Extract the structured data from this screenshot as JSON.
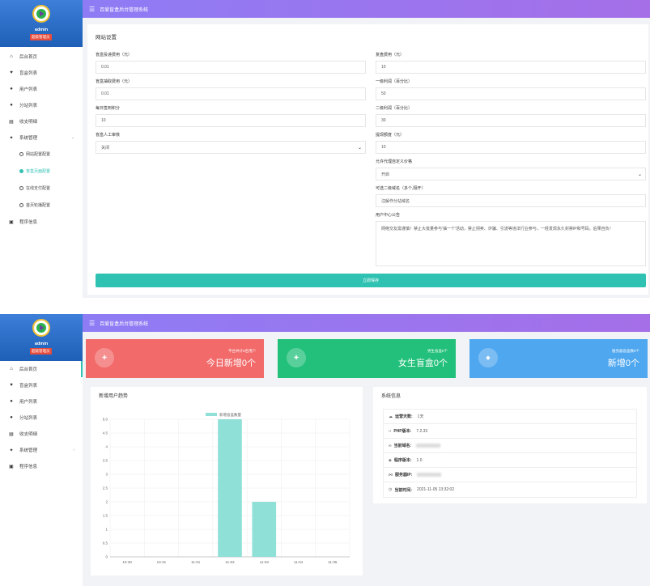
{
  "app": {
    "title": "百爱盲盒后台管理系统",
    "user": "admin",
    "role_badge": "超级管理员"
  },
  "menu": [
    {
      "label": "后台首页",
      "icon": "home-icon"
    },
    {
      "label": "盲盒列表",
      "icon": "heart-icon"
    },
    {
      "label": "用户列表",
      "icon": "user-icon"
    },
    {
      "label": "分站列表",
      "icon": "user-icon"
    },
    {
      "label": "收支明细",
      "icon": "list-icon"
    },
    {
      "label": "系统管理",
      "icon": "gear-icon"
    },
    {
      "label": "程序信息",
      "icon": "info-icon"
    }
  ],
  "submenu": [
    {
      "label": "网站配置配置"
    },
    {
      "label": "盲盒页面配置"
    },
    {
      "label": "在线支付配置"
    },
    {
      "label": "首页轮播配置"
    }
  ],
  "settings": {
    "panel_title": "网站设置",
    "fields_left": [
      {
        "label": "盲盒投递费用（元）",
        "value": "0.01"
      },
      {
        "label": "盲盒抽取费用（元）",
        "value": "0.01"
      },
      {
        "label": "每日签到积分",
        "value": "10"
      },
      {
        "label": "盲盒人工审核",
        "value": "关闭"
      }
    ],
    "fields_right": [
      {
        "label": "复盘费用（元）",
        "value": "10"
      },
      {
        "label": "一级利润（百分比）",
        "value": "50"
      },
      {
        "label": "二级利润（百分比）",
        "value": "30"
      },
      {
        "label": "提现额度（元）",
        "value": "10"
      },
      {
        "label": "允许代理自定义价格",
        "value": "开启"
      },
      {
        "label": "可选二级域名（多个,隔开）",
        "value": "注解作分站域名"
      },
      {
        "label": "用户中心公告",
        "value": "网络交友需谨慎！禁止大批量参与'抽一个'活动，禁止拐卖、诈骗、引流等违法行业参与，一经发现永久封禁IP和号码，后果自负！"
      }
    ],
    "save_label": "立即保存"
  },
  "cards": [
    {
      "small": "平台共计0名用户",
      "big": "今日新增0个",
      "color": "#f26a6a",
      "icon": "user-add-icon"
    },
    {
      "small": "男生盲盒0个",
      "big": "女生盲盒0个",
      "color": "#22c07a",
      "icon": "users-icon"
    },
    {
      "small": "服务器盲盒数0个",
      "big": "新增0个",
      "color": "#4fa7ef",
      "icon": "diamond-icon"
    }
  ],
  "chart_panel_title": "新增用户趋势",
  "chart_data": {
    "type": "bar",
    "categories": [
      "10-30",
      "10-31",
      "11-01",
      "11-02",
      "11-03",
      "11-04",
      "11-05"
    ],
    "series": [
      {
        "name": "新增盲盒数量",
        "values": [
          0,
          0,
          0,
          5,
          2,
          0,
          0
        ]
      }
    ],
    "ylim": [
      0,
      5.0
    ],
    "yticks": [
      "5.0",
      "4.5",
      "4",
      "3.5",
      "3",
      "2.5",
      "2",
      "1.5",
      "1",
      "0.5",
      "0"
    ],
    "grid": true,
    "legend": "top-center",
    "bar_color": "#8fe0d6"
  },
  "system": {
    "title": "系统信息",
    "rows": [
      {
        "key": "运营天数:",
        "value": "1天",
        "icon": "cloud-icon"
      },
      {
        "key": "PHP版本:",
        "value": "7.2.33",
        "icon": "code-icon"
      },
      {
        "key": "当前域名:",
        "value": "",
        "icon": "link-icon"
      },
      {
        "key": "程序版本:",
        "value": "1.0",
        "icon": "version-icon"
      },
      {
        "key": "服务器IP:",
        "value": "",
        "icon": "server-icon"
      },
      {
        "key": "当前时间:",
        "value": "2021-11-05 13:32:02",
        "icon": "clock-icon"
      }
    ]
  }
}
